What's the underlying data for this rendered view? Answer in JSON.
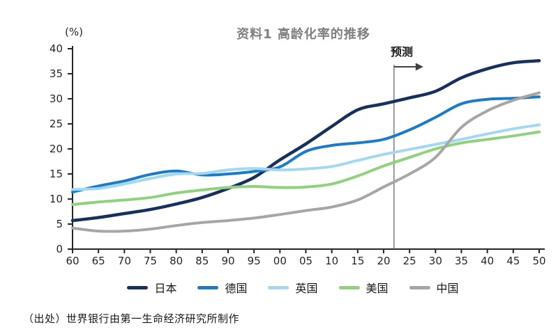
{
  "chart_data": {
    "type": "line",
    "title": "资料1 高龄化率的推移",
    "ylabel": "(%)",
    "xlabel": "",
    "grid": false,
    "legend_position": "bottom",
    "ylim": [
      0,
      40
    ],
    "y_ticks": [
      0,
      5,
      10,
      15,
      20,
      25,
      30,
      35,
      40
    ],
    "x_start_year": 1960,
    "x_end_year": 2050,
    "x_step_years": 5,
    "x_tick_labels": [
      "60",
      "65",
      "70",
      "75",
      "80",
      "85",
      "90",
      "95",
      "00",
      "05",
      "10",
      "15",
      "20",
      "25",
      "30",
      "35",
      "40",
      "45",
      "50"
    ],
    "annotation": {
      "label": "预测",
      "year": 2022
    },
    "axis_color": "#262626",
    "forecast_line_color": "#595959",
    "arrow_color": "#404040",
    "series": [
      {
        "key": "japan",
        "name": "日本",
        "color": "#17305F",
        "values": [
          5.7,
          6.3,
          7.1,
          7.9,
          9.0,
          10.3,
          12.1,
          14.3,
          17.8,
          21.0,
          24.5,
          27.8,
          29.0,
          30.2,
          31.5,
          34.2,
          36.0,
          37.2,
          37.6
        ]
      },
      {
        "key": "germany",
        "name": "德国",
        "color": "#1B7BC8",
        "values": [
          11.4,
          12.6,
          13.6,
          14.9,
          15.6,
          14.8,
          15.0,
          15.5,
          16.4,
          19.5,
          20.7,
          21.2,
          21.9,
          23.8,
          26.3,
          29.0,
          29.9,
          30.1,
          30.4
        ]
      },
      {
        "key": "uk",
        "name": "英国",
        "color": "#A2D8F2",
        "values": [
          11.9,
          12.1,
          13.0,
          14.1,
          15.0,
          15.1,
          15.8,
          16.1,
          15.8,
          16.0,
          16.5,
          17.7,
          18.9,
          19.9,
          20.9,
          21.9,
          23.0,
          24.0,
          24.8
        ]
      },
      {
        "key": "usa",
        "name": "美国",
        "color": "#90D17E",
        "values": [
          8.9,
          9.4,
          9.8,
          10.3,
          11.2,
          11.8,
          12.3,
          12.5,
          12.3,
          12.4,
          13.0,
          14.6,
          16.6,
          18.3,
          20.0,
          21.2,
          21.9,
          22.6,
          23.4
        ]
      },
      {
        "key": "china",
        "name": "中国",
        "color": "#A6A6A6",
        "values": [
          4.2,
          3.6,
          3.6,
          4.0,
          4.7,
          5.3,
          5.7,
          6.2,
          6.9,
          7.7,
          8.4,
          9.8,
          12.4,
          15.0,
          18.3,
          24.3,
          27.6,
          29.7,
          31.2
        ]
      }
    ]
  },
  "footer": {
    "source": "（出处）世界银行由第一生命经济研究所制作"
  }
}
